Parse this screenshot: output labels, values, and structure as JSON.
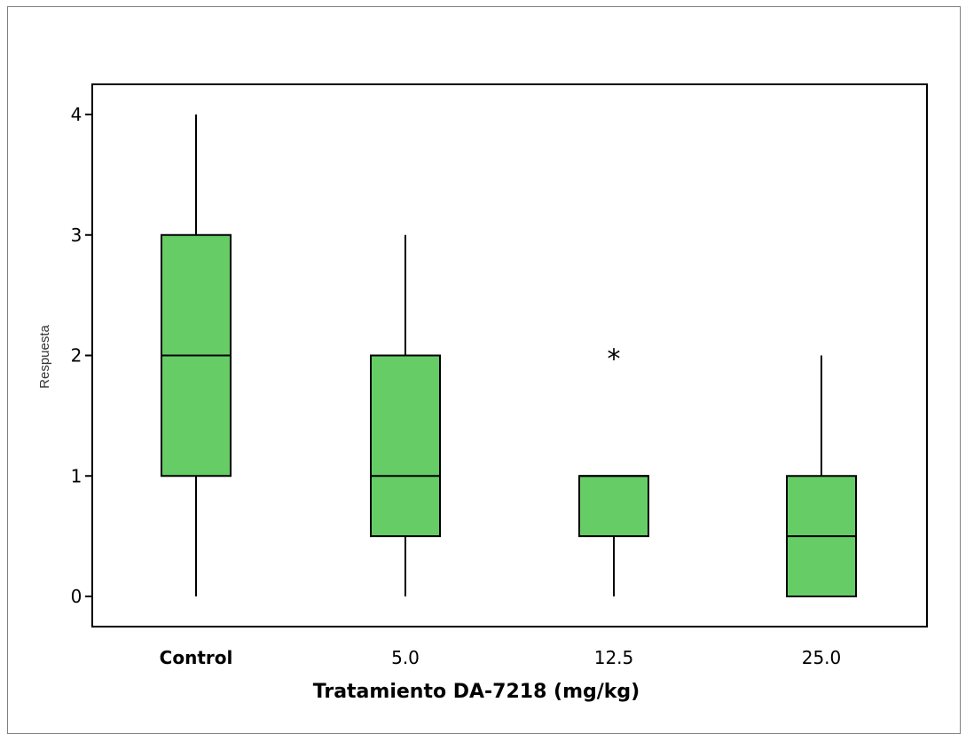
{
  "chart_data": {
    "type": "box",
    "title": "",
    "xlabel": "Tratamiento  DA-7218 (mg/kg)",
    "ylabel": "Respuesta",
    "categories": [
      "Control",
      "5.0",
      "12.5",
      "25.0"
    ],
    "yticks": [
      0,
      1,
      2,
      3,
      4
    ],
    "ylim": [
      -0.25,
      4.25
    ],
    "grid": false,
    "legend": "none",
    "box_color": "#66cc66",
    "line_color": "#000000",
    "boxes": [
      {
        "category": "Control",
        "whisker_low": 0,
        "q1": 1,
        "median": 2,
        "q3": 3,
        "whisker_high": 4,
        "outliers": []
      },
      {
        "category": "5.0",
        "whisker_low": 0,
        "q1": 0.5,
        "median": 1,
        "q3": 2,
        "whisker_high": 3,
        "outliers": []
      },
      {
        "category": "12.5",
        "whisker_low": 0,
        "q1": 0.5,
        "median": 1,
        "q3": 1,
        "whisker_high": 1,
        "outliers": [
          2
        ]
      },
      {
        "category": "25.0",
        "whisker_low": 0,
        "q1": 0,
        "median": 0.5,
        "q3": 1,
        "whisker_high": 2,
        "outliers": []
      }
    ]
  }
}
